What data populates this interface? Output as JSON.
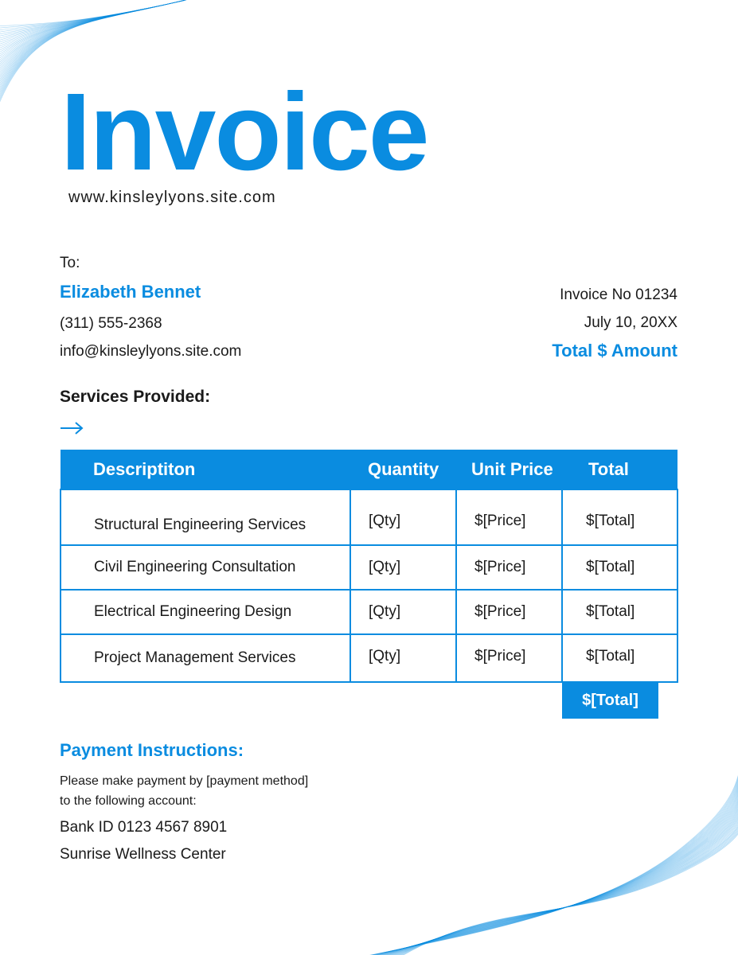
{
  "header": {
    "title": "Invoice",
    "website": "www.kinsleylyons.site.com"
  },
  "bill_to": {
    "label": "To:",
    "name": "Elizabeth Bennet",
    "phone": "(311) 555-2368",
    "email": "info@kinsleylyons.site.com"
  },
  "invoice": {
    "number": "Invoice No 01234",
    "date": "July 10, 20XX",
    "total": "Total $ Amount"
  },
  "services": {
    "heading": "Services Provided:",
    "arrow_icon": "arrow-right-icon"
  },
  "table": {
    "headers": [
      "Descriptiton",
      "Quantity",
      "Unit Price",
      "Total"
    ],
    "rows": [
      [
        "Structural Engineering Services",
        "[Qty]",
        "$[Price]",
        "$[Total]"
      ],
      [
        "Civil Engineering Consultation",
        "[Qty]",
        "$[Price]",
        "$[Total]"
      ],
      [
        "Electrical Engineering Design",
        "[Qty]",
        "$[Price]",
        "$[Total]"
      ],
      [
        "Project Management Services",
        "[Qty]",
        "$[Price]",
        "$[Total]"
      ]
    ],
    "grand_total": "$[Total]"
  },
  "payment": {
    "heading": "Payment Instructions:",
    "line1": "Please make payment by [payment method]",
    "line2": "to the following account:",
    "bank": "Bank ID 0123 4567 8901",
    "account_name": "Sunrise Wellness Center"
  },
  "colors": {
    "accent": "#0a8ce0"
  }
}
